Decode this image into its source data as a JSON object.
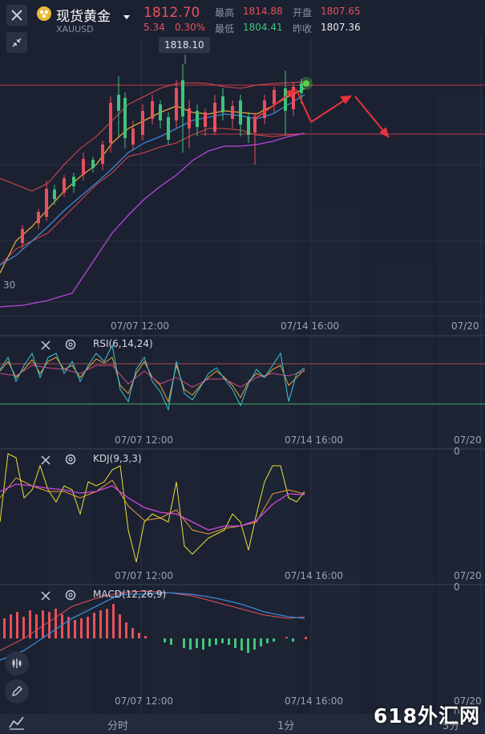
{
  "header": {
    "title": "现货黄金",
    "symbol": "XAUUSD",
    "price": "1812.70",
    "change": "5.34",
    "change_pct": "0.30%",
    "high_label": "最高",
    "high": "1814.88",
    "open_label": "开盘",
    "open": "1807.65",
    "low_label": "最低",
    "low": "1804.41",
    "prev_label": "昨收",
    "prev": "1807.36"
  },
  "main_chart": {
    "peak_tag": "1818.10",
    "left_value": "30",
    "time_labels": [
      "07/07 12:00",
      "07/14 16:00",
      "07/20"
    ]
  },
  "rsi": {
    "label": "RSI(6,14,24)",
    "time_labels": [
      "07/07 12:00",
      "07/14 16:00",
      "07/20 0"
    ]
  },
  "kdj": {
    "label": "KDJ(9,3,3)",
    "time_labels": [
      "07/07 12:00",
      "07/14 16:00",
      "07/20 0"
    ]
  },
  "macd": {
    "label": "MACD(12,26,9)",
    "time_labels": [
      "07/07 12:00",
      "07/14 16:00",
      "07/20 0"
    ]
  },
  "bottom_tabs": [
    "分时",
    "1分",
    "5分"
  ],
  "watermark": "618外汇网",
  "colors": {
    "up": "#e8505b",
    "down": "#3fc47a",
    "bg": "#1b2131"
  }
}
